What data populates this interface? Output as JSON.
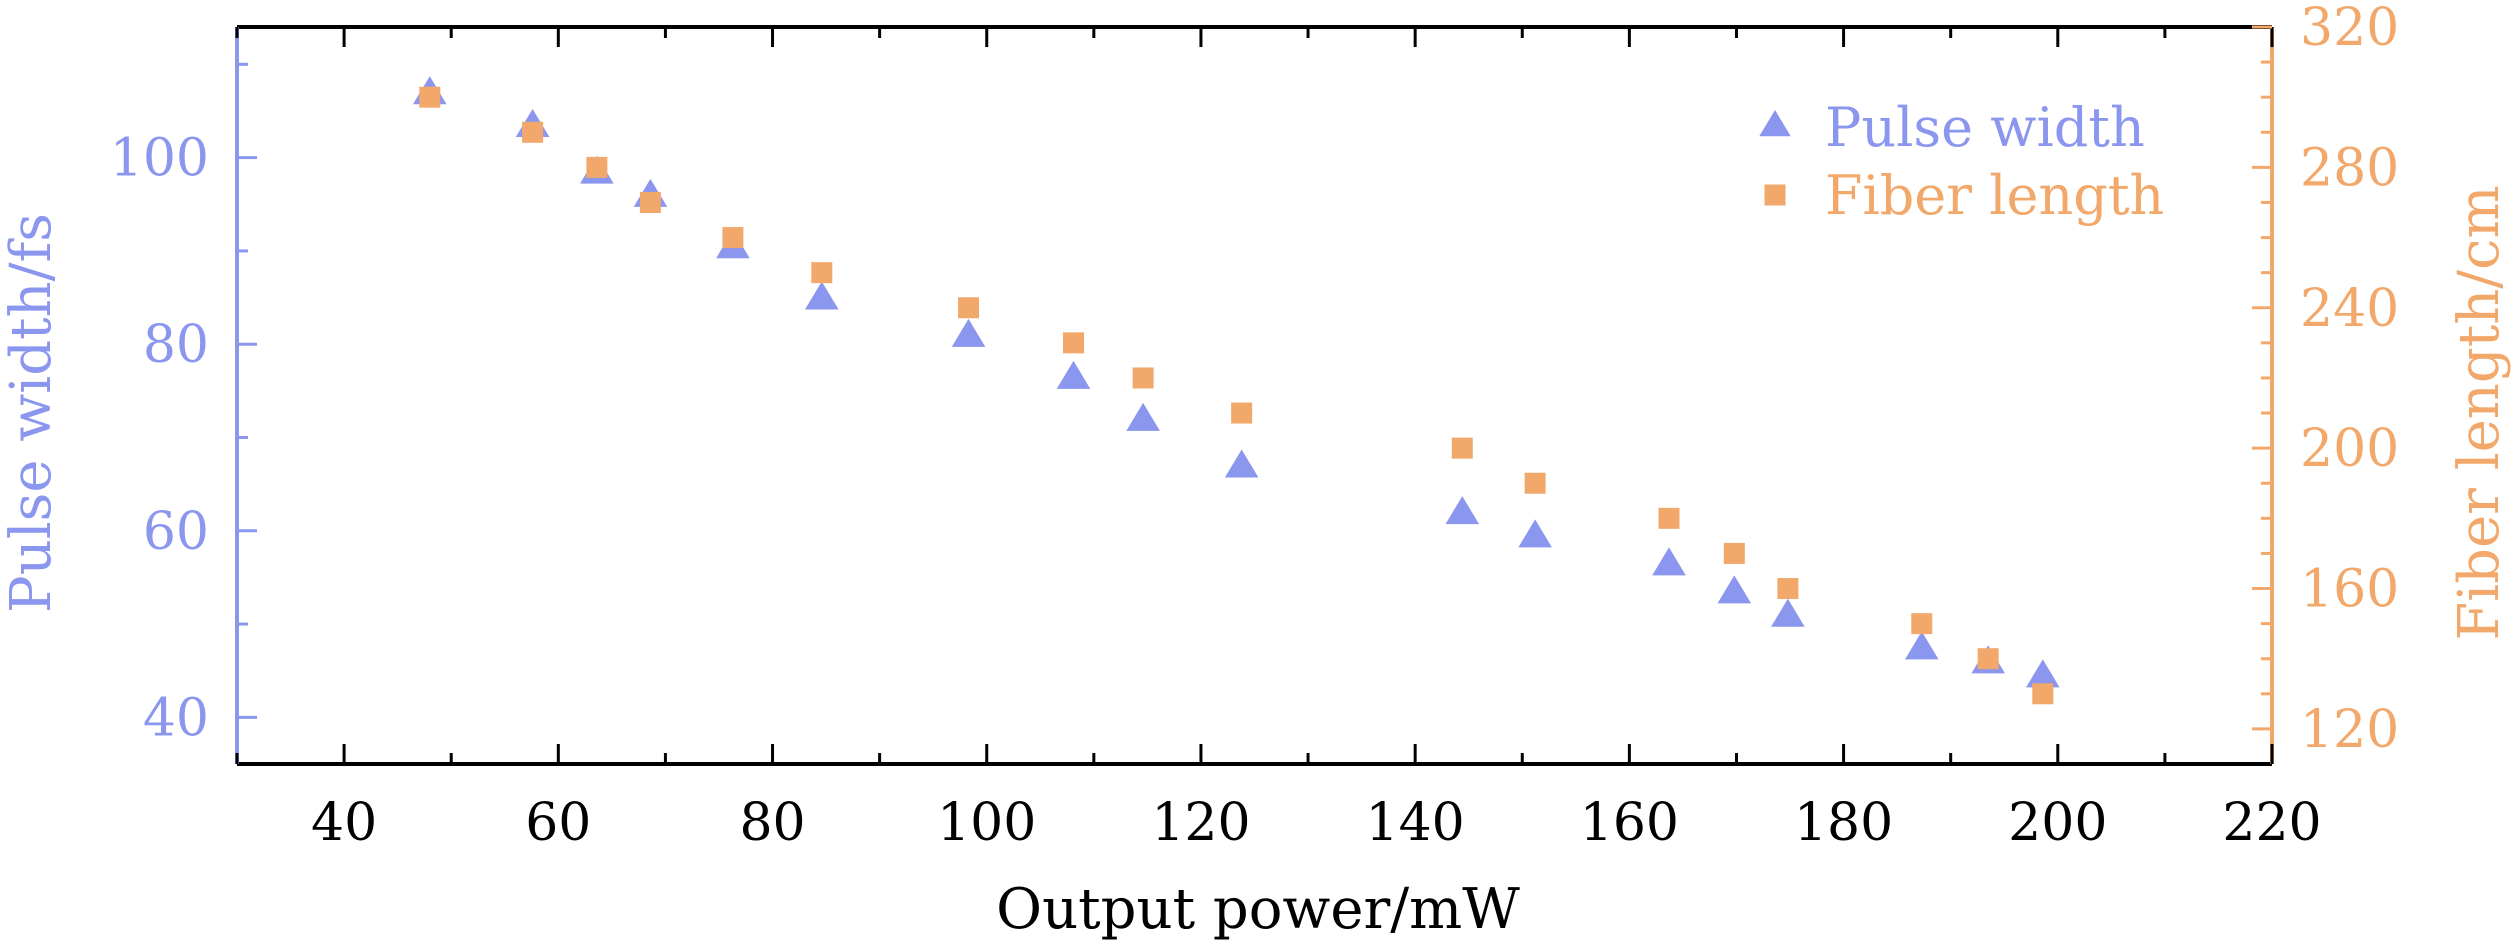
{
  "chart_data": {
    "type": "scatter",
    "xlabel": "Output power/mW",
    "ylabel_left": "Pulse width/fs",
    "ylabel_right": "Fiber length/cm",
    "xlim": [
      30,
      220
    ],
    "ylim_left": [
      35,
      114
    ],
    "ylim_right": [
      110,
      320
    ],
    "x_ticks": [
      40,
      60,
      80,
      100,
      120,
      140,
      160,
      180,
      200,
      220
    ],
    "y_ticks_left": [
      40,
      60,
      80,
      100
    ],
    "y_ticks_right": [
      120,
      160,
      200,
      240,
      280,
      320
    ],
    "legend_position": "top-right",
    "grid": false,
    "series": [
      {
        "name": "Pulse width",
        "axis": "left",
        "marker": "triangle",
        "color": "#8b96ee",
        "points": [
          {
            "x": 48,
            "y": 107
          },
          {
            "x": 57.6,
            "y": 103.5
          },
          {
            "x": 63.6,
            "y": 98.5
          },
          {
            "x": 68.6,
            "y": 96
          },
          {
            "x": 76.3,
            "y": 90.5
          },
          {
            "x": 84.6,
            "y": 85
          },
          {
            "x": 98.3,
            "y": 81
          },
          {
            "x": 108.1,
            "y": 76.5
          },
          {
            "x": 114.6,
            "y": 72
          },
          {
            "x": 123.8,
            "y": 67
          },
          {
            "x": 144.4,
            "y": 62
          },
          {
            "x": 151.2,
            "y": 59.5
          },
          {
            "x": 163.7,
            "y": 56.5
          },
          {
            "x": 169.8,
            "y": 53.5
          },
          {
            "x": 174.8,
            "y": 51
          },
          {
            "x": 187.3,
            "y": 47.5
          },
          {
            "x": 193.5,
            "y": 46
          },
          {
            "x": 198.6,
            "y": 44.5
          }
        ]
      },
      {
        "name": "Fiber length",
        "axis": "right",
        "marker": "square",
        "color": "#f2a86a",
        "points": [
          {
            "x": 48,
            "y": 300
          },
          {
            "x": 57.6,
            "y": 290
          },
          {
            "x": 63.6,
            "y": 280
          },
          {
            "x": 68.6,
            "y": 270
          },
          {
            "x": 76.3,
            "y": 260
          },
          {
            "x": 84.6,
            "y": 250
          },
          {
            "x": 98.3,
            "y": 240
          },
          {
            "x": 108.1,
            "y": 230
          },
          {
            "x": 114.6,
            "y": 220
          },
          {
            "x": 123.8,
            "y": 210
          },
          {
            "x": 144.4,
            "y": 200
          },
          {
            "x": 151.2,
            "y": 190
          },
          {
            "x": 163.7,
            "y": 180
          },
          {
            "x": 169.8,
            "y": 170
          },
          {
            "x": 174.8,
            "y": 160
          },
          {
            "x": 187.3,
            "y": 150
          },
          {
            "x": 193.5,
            "y": 140
          },
          {
            "x": 198.6,
            "y": 130
          }
        ]
      }
    ],
    "colors": {
      "left_axis": "#8b96ee",
      "right_axis": "#f2a86a",
      "frame": "#000000"
    }
  }
}
